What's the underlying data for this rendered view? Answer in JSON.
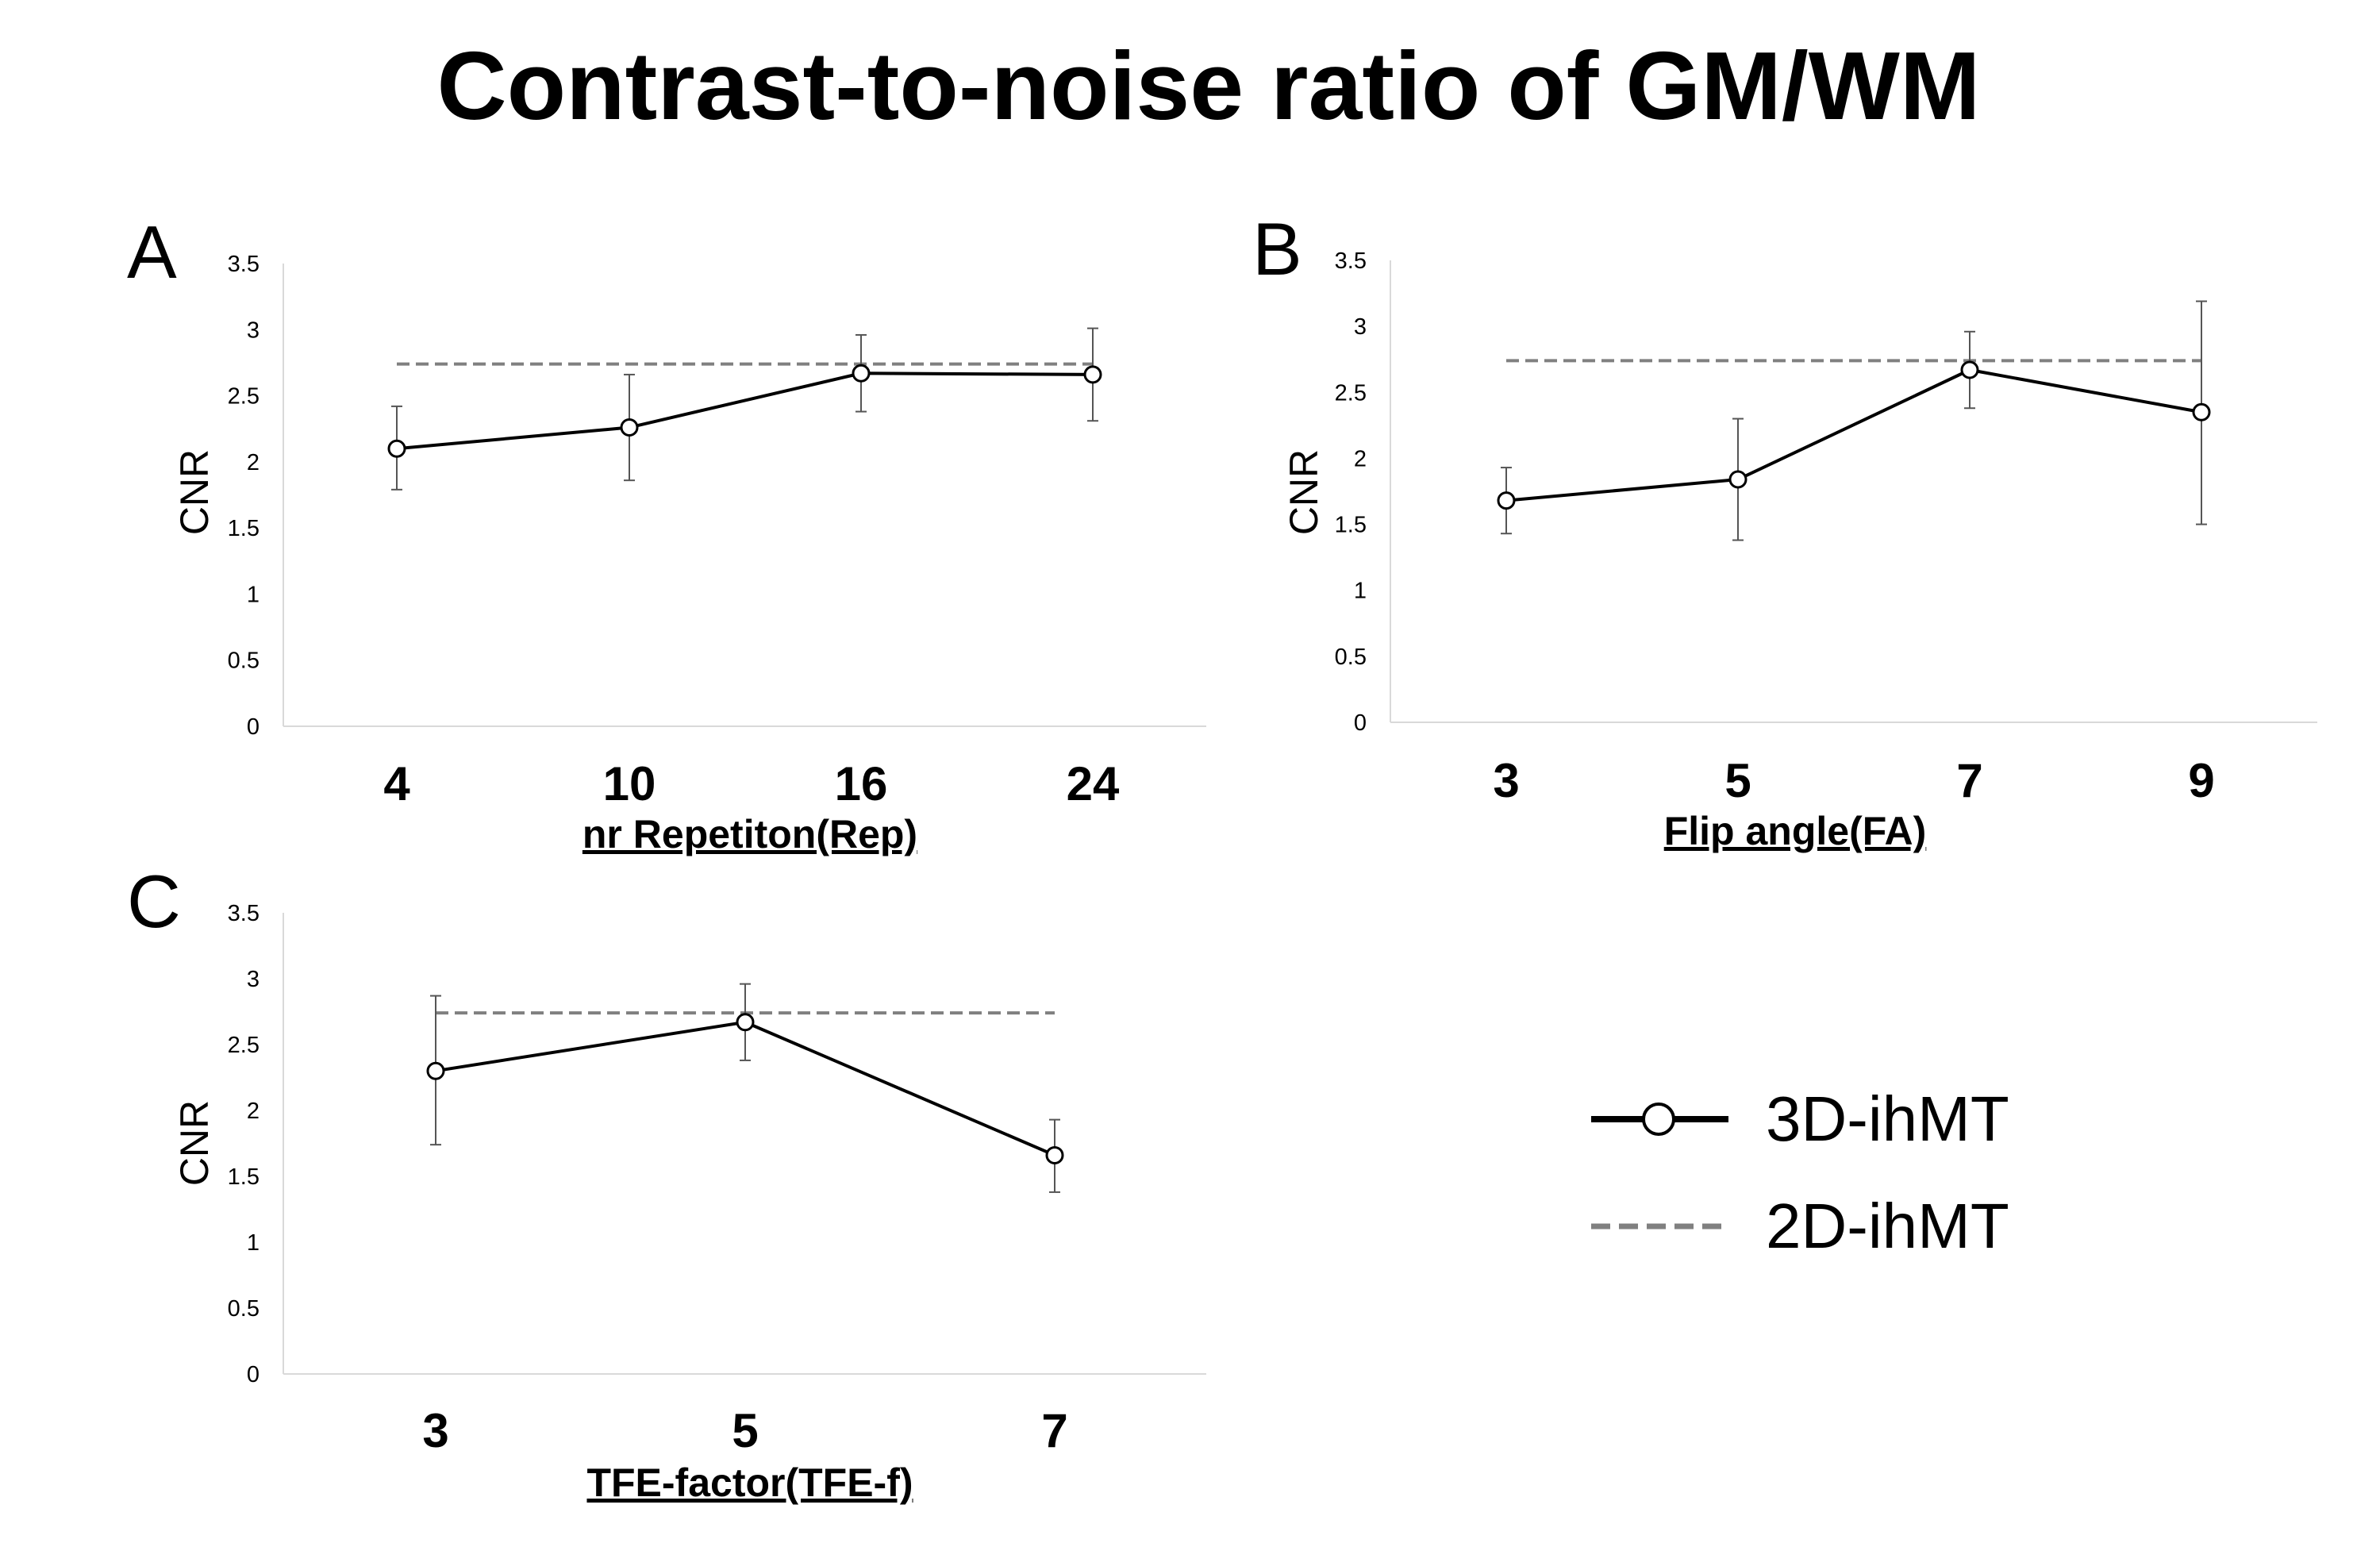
{
  "chart_data": {
    "title": "Contrast-to-noise ratio of GM/WM",
    "legend": {
      "position": "lower-right",
      "entries": [
        {
          "name": "3D-ihMT",
          "style": "solid-with-circle-markers",
          "color": "#000000"
        },
        {
          "name": "2D-ihMT",
          "style": "dashed",
          "color": "#808080"
        }
      ]
    },
    "panels": [
      {
        "type": "line",
        "letter": "A",
        "xlabel": "nr Repetiton(Rep)",
        "ylabel": "CNR",
        "categories": [
          "4",
          "10",
          "16",
          "24"
        ],
        "ylim": [
          0,
          3.5
        ],
        "yticks": [
          "0",
          "0.5",
          "1",
          "1.5",
          "2",
          "2.5",
          "3",
          "3.5"
        ],
        "series": [
          {
            "name": "3D-ihMT",
            "values": [
              2.1,
              2.26,
              2.67,
              2.66
            ],
            "err_low": [
              1.79,
              1.86,
              2.38,
              2.31
            ],
            "err_high": [
              2.42,
              2.66,
              2.96,
              3.01
            ]
          },
          {
            "name": "2D-ihMT",
            "values": [
              2.74,
              2.74,
              2.74,
              2.74
            ]
          }
        ]
      },
      {
        "type": "line",
        "letter": "B",
        "xlabel": "Flip angle(FA)",
        "ylabel": "CNR",
        "categories": [
          "3",
          "5",
          "7",
          "9"
        ],
        "ylim": [
          0,
          3.5
        ],
        "yticks": [
          "0",
          "0.5",
          "1",
          "1.5",
          "2",
          "2.5",
          "3",
          "3.5"
        ],
        "series": [
          {
            "name": "3D-ihMT",
            "values": [
              1.68,
              1.84,
              2.67,
              2.35
            ],
            "err_low": [
              1.43,
              1.38,
              2.38,
              1.5
            ],
            "err_high": [
              1.93,
              2.3,
              2.96,
              3.19
            ]
          },
          {
            "name": "2D-ihMT",
            "values": [
              2.74,
              2.74,
              2.74,
              2.74
            ]
          }
        ]
      },
      {
        "type": "line",
        "letter": "C",
        "xlabel": "TFE-factor(TFE-f)",
        "ylabel": "CNR",
        "categories": [
          "3",
          "5",
          "7"
        ],
        "ylim": [
          0,
          3.5
        ],
        "yticks": [
          "0",
          "0.5",
          "1",
          "1.5",
          "2",
          "2.5",
          "3",
          "3.5"
        ],
        "series": [
          {
            "name": "3D-ihMT",
            "values": [
              2.3,
              2.67,
              1.66
            ],
            "err_low": [
              1.74,
              2.38,
              1.38
            ],
            "err_high": [
              2.87,
              2.96,
              1.93
            ]
          },
          {
            "name": "2D-ihMT",
            "values": [
              2.74,
              2.74,
              2.74
            ]
          }
        ]
      }
    ]
  }
}
